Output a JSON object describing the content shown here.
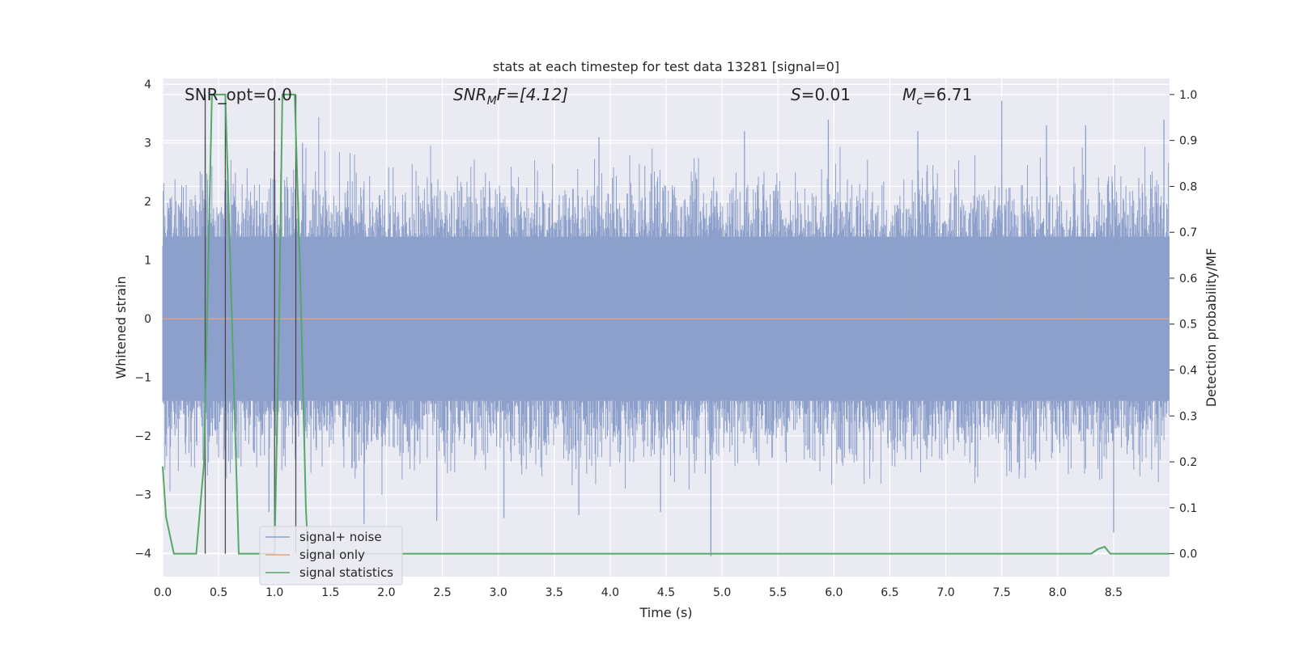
{
  "chart_data": {
    "type": "line",
    "title": "stats at each timestep for test data 13281 [signal=0]",
    "xlabel": "Time (s)",
    "ylabel": "Whitened strain",
    "y2label": "Detection probability/MF",
    "xlim": [
      0,
      9.0
    ],
    "ylim": [
      -4.4,
      4.1
    ],
    "y2lim": [
      -0.05,
      1.035
    ],
    "x_ticks": [
      0.0,
      0.5,
      1.0,
      1.5,
      2.0,
      2.5,
      3.0,
      3.5,
      4.0,
      4.5,
      5.0,
      5.5,
      6.0,
      6.5,
      7.0,
      7.5,
      8.0,
      8.5
    ],
    "x_tick_labels": [
      "0.0",
      "0.5",
      "1.0",
      "1.5",
      "2.0",
      "2.5",
      "3.0",
      "3.5",
      "4.0",
      "4.5",
      "5.0",
      "5.5",
      "6.0",
      "6.5",
      "7.0",
      "7.5",
      "8.0",
      "8.5"
    ],
    "y_ticks": [
      4,
      3,
      2,
      1,
      0,
      -1,
      -2,
      -3,
      -4
    ],
    "y_tick_labels": [
      "4",
      "3",
      "2",
      "1",
      "0",
      "−1",
      "−2",
      "−3",
      "−4"
    ],
    "y2_ticks": [
      1.0,
      0.9,
      0.8,
      0.7,
      0.6,
      0.5,
      0.4,
      0.3,
      0.2,
      0.1,
      0.0
    ],
    "y2_tick_labels": [
      "1.0",
      "0.9",
      "0.8",
      "0.7",
      "0.6",
      "0.5",
      "0.4",
      "0.3",
      "0.2",
      "0.1",
      "0.0"
    ],
    "grid": true,
    "legend_position": "lower-left",
    "annotations": {
      "snr_opt": "SNR_opt=0.0",
      "snr_mf_main": "SNR",
      "snr_mf_sub": "M",
      "snr_mf_rest": "F=[4.12]",
      "s_main": "S",
      "s_rest": "=0.01",
      "mc_main": "M",
      "mc_sub": "c",
      "mc_rest": "=6.71"
    },
    "series": [
      {
        "name": "signal+ noise",
        "color": "#8da0cb",
        "style": "noise-band",
        "x_range": [
          0,
          9.0
        ],
        "typical_abs": 1.4,
        "max": 3.72,
        "min": -4.05,
        "peaks": [
          [
            0.38,
            3.15
          ],
          [
            4.9,
            -4.05
          ],
          [
            7.5,
            3.72
          ],
          [
            8.5,
            -3.65
          ],
          [
            3.72,
            -3.35
          ],
          [
            3.05,
            -3.4
          ],
          [
            5.95,
            3.4
          ],
          [
            2.45,
            -3.45
          ],
          [
            7.9,
            3.3
          ],
          [
            8.95,
            3.4
          ],
          [
            3.9,
            3.1
          ],
          [
            1.25,
            3.0
          ],
          [
            5.2,
            3.2
          ],
          [
            6.75,
            3.2
          ],
          [
            8.25,
            3.3
          ],
          [
            0.95,
            -3.3
          ],
          [
            4.45,
            -3.3
          ],
          [
            1.8,
            -3.5
          ]
        ]
      },
      {
        "name": "signal only",
        "color": "#e5a07f",
        "x": [
          0,
          9.0
        ],
        "y": [
          0,
          0
        ]
      },
      {
        "name": "signal statistics",
        "color": "#55a868",
        "axis": "right",
        "x": [
          0.0,
          0.03,
          0.1,
          0.3,
          0.37,
          0.44,
          0.5,
          0.56,
          0.68,
          1.0,
          1.04,
          1.07,
          1.11,
          1.18,
          1.23,
          1.28,
          1.3,
          8.3,
          8.36,
          8.42,
          8.47,
          9.0
        ],
        "y": [
          0.19,
          0.08,
          0.0,
          0.0,
          0.2,
          1.0,
          1.0,
          1.0,
          0.0,
          0.0,
          0.5,
          1.0,
          1.0,
          1.0,
          0.6,
          0.1,
          0.0,
          0.0,
          0.01,
          0.015,
          0.0,
          0.0
        ]
      }
    ],
    "vertical_markers": [
      {
        "x": 0.38,
        "color": "#4c4c4c"
      },
      {
        "x": 0.56,
        "color": "#4c4c4c"
      },
      {
        "x": 1.0,
        "color": "#4c4c4c"
      },
      {
        "x": 1.19,
        "color": "#4c4c4c"
      }
    ],
    "colors": {
      "plot_background": "#eaeaf2",
      "grid": "#ffffff",
      "text": "#262626"
    }
  }
}
